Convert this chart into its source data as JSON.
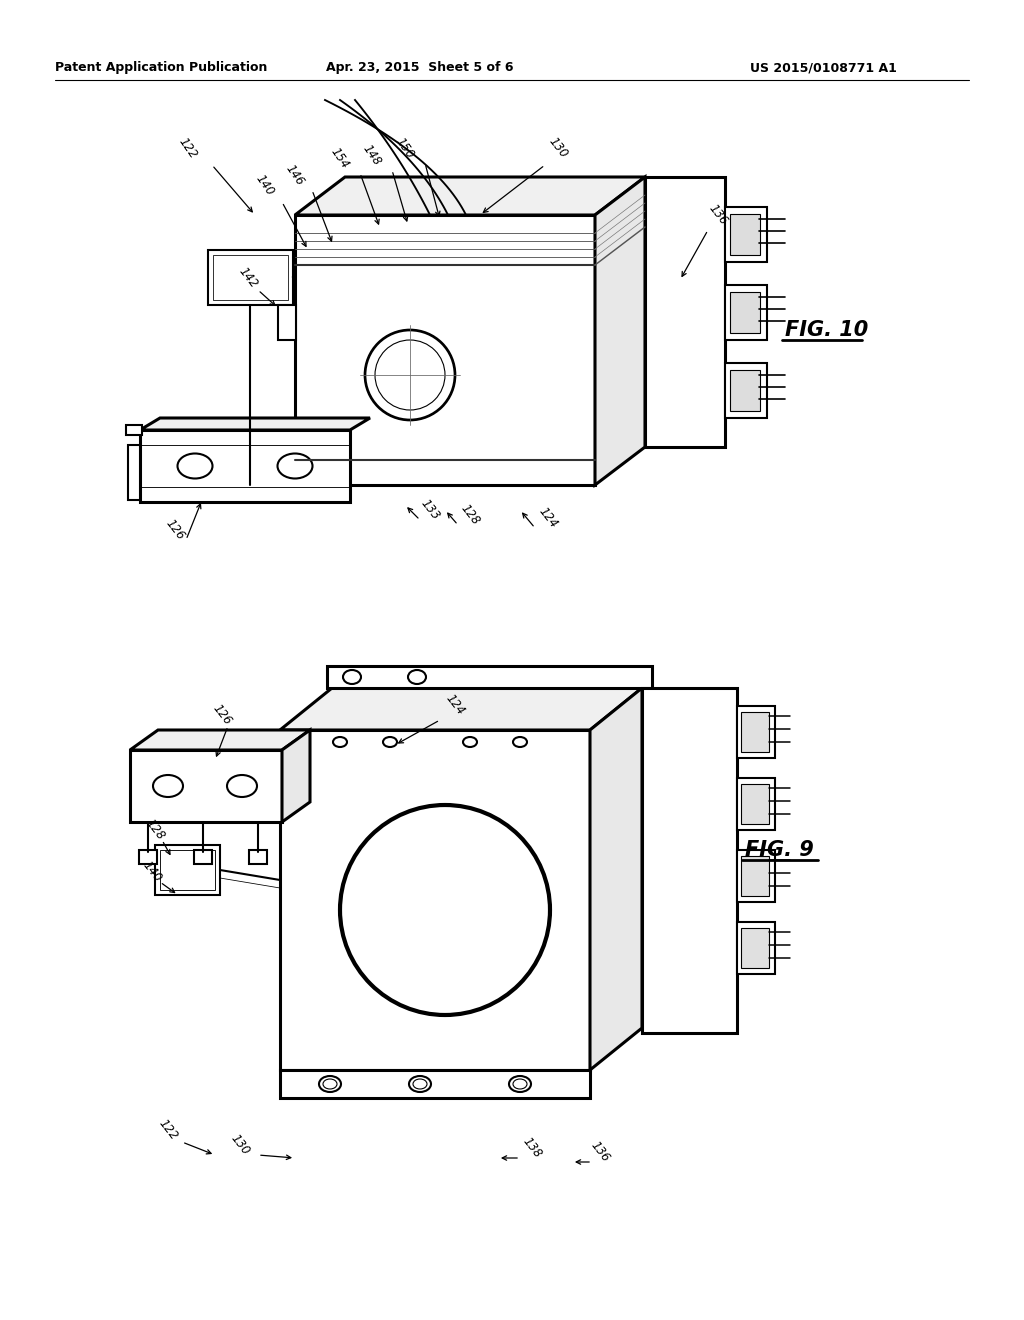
{
  "background_color": "#ffffff",
  "header_left": "Patent Application Publication",
  "header_center": "Apr. 23, 2015  Sheet 5 of 6",
  "header_right": "US 2015/0108771 A1",
  "fig10_label": "FIG. 10",
  "fig9_label": "FIG. 9",
  "line_color": "#000000",
  "line_width": 1.5,
  "thin_line": 0.8,
  "thick_line": 2.2,
  "label_fontsize": 8.5,
  "header_fontsize": 9,
  "fig_label_fontsize": 14,
  "gray_light": "#cccccc",
  "gray_mid": "#999999"
}
